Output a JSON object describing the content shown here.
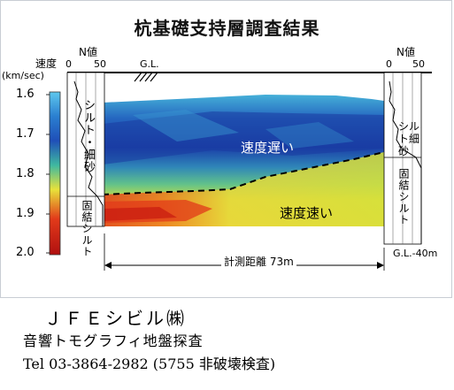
{
  "title": "杭基礎支持層調査結果",
  "velocity_axis": {
    "label": "速度",
    "unit": "(km/sec)",
    "ticks": [
      "1.6",
      "1.7",
      "1.8",
      "1.9",
      "2.0"
    ]
  },
  "left_log": {
    "header": "N値",
    "tick_min": "0",
    "tick_max": "50",
    "layer_upper": "シルト・細砂",
    "layer_lower": "固結シルト"
  },
  "right_log": {
    "header": "N値",
    "tick_min": "0",
    "tick_max": "50",
    "layer_upper": "シルト細砂",
    "layer_lower": "固結シルト",
    "depth_label": "G.L.-40m"
  },
  "ground_label": "G.L.",
  "zone_slow": "速度遅い",
  "zone_fast": "速度速い",
  "distance_label": "計測距離 73m",
  "colors": {
    "slow": "#1f4fb8",
    "mid": "#3fb8a0",
    "yellow": "#e8e23a",
    "fast": "#e23a1a"
  },
  "footer": {
    "company": "ＪＦＥシビル㈱",
    "service": "音響トモグラフィ地盤探査",
    "tel": "Tel 03-3864-2982 (5755 非破壊検査)"
  }
}
